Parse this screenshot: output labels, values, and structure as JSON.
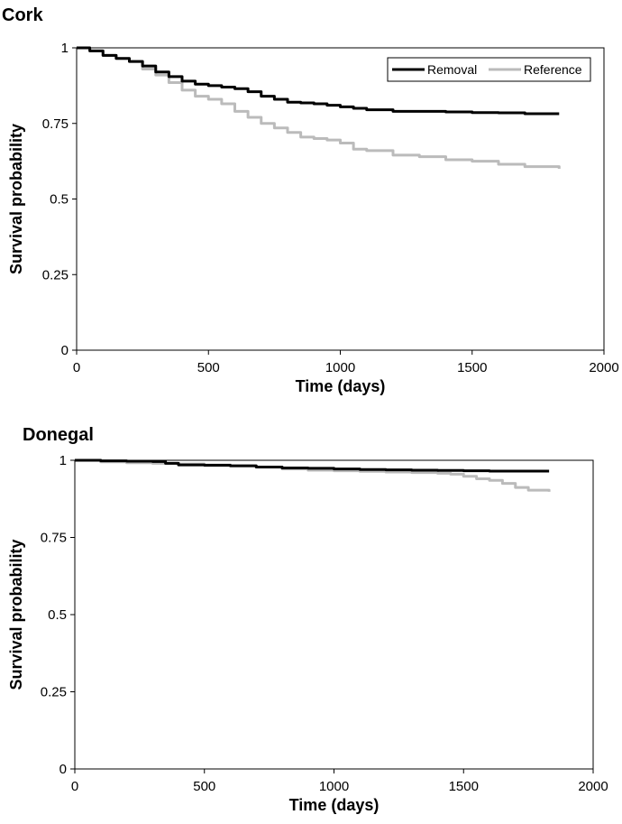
{
  "chart_data": [
    {
      "type": "line",
      "title": "Cork",
      "xlabel": "Time (days)",
      "ylabel": "Survival probability",
      "xlim": [
        0,
        2000
      ],
      "ylim": [
        0,
        1
      ],
      "xticks": [
        0,
        500,
        1000,
        1500,
        2000
      ],
      "yticks": [
        0,
        0.25,
        0.5,
        0.75,
        1
      ],
      "xtick_labels": [
        "0",
        "500",
        "1000",
        "1500",
        "2000"
      ],
      "ytick_labels": [
        "0",
        "0.25",
        "0.5",
        "0.75",
        "1"
      ],
      "legend": {
        "position": "top-right",
        "entries": [
          "Removal",
          "Reference"
        ]
      },
      "grid": false,
      "series": [
        {
          "name": "Removal",
          "color": "#000000",
          "x": [
            0,
            50,
            100,
            150,
            200,
            250,
            300,
            350,
            400,
            450,
            500,
            550,
            600,
            650,
            700,
            750,
            800,
            850,
            900,
            950,
            1000,
            1050,
            1100,
            1200,
            1300,
            1400,
            1500,
            1600,
            1700,
            1830
          ],
          "y": [
            1,
            0.99,
            0.975,
            0.965,
            0.955,
            0.94,
            0.92,
            0.905,
            0.89,
            0.88,
            0.875,
            0.87,
            0.865,
            0.855,
            0.84,
            0.83,
            0.82,
            0.818,
            0.815,
            0.81,
            0.805,
            0.8,
            0.795,
            0.79,
            0.79,
            0.788,
            0.786,
            0.785,
            0.782,
            0.782
          ]
        },
        {
          "name": "Reference",
          "color": "#bbbbbb",
          "x": [
            0,
            50,
            100,
            150,
            200,
            250,
            300,
            350,
            400,
            450,
            500,
            550,
            600,
            650,
            700,
            750,
            800,
            850,
            900,
            950,
            1000,
            1050,
            1100,
            1200,
            1300,
            1400,
            1500,
            1600,
            1700,
            1830
          ],
          "y": [
            1,
            0.99,
            0.975,
            0.965,
            0.955,
            0.93,
            0.91,
            0.885,
            0.86,
            0.84,
            0.83,
            0.815,
            0.79,
            0.77,
            0.75,
            0.735,
            0.72,
            0.705,
            0.7,
            0.695,
            0.685,
            0.665,
            0.66,
            0.645,
            0.64,
            0.63,
            0.625,
            0.615,
            0.607,
            0.6
          ]
        }
      ]
    },
    {
      "type": "line",
      "title": "Donegal",
      "xlabel": "Time (days)",
      "ylabel": "Survival probability",
      "xlim": [
        0,
        2000
      ],
      "ylim": [
        0,
        1
      ],
      "xticks": [
        0,
        500,
        1000,
        1500,
        2000
      ],
      "yticks": [
        0,
        0.25,
        0.5,
        0.75,
        1
      ],
      "xtick_labels": [
        "0",
        "500",
        "1000",
        "1500",
        "2000"
      ],
      "ytick_labels": [
        "0",
        "0.25",
        "0.5",
        "0.75",
        "1"
      ],
      "grid": false,
      "series": [
        {
          "name": "Removal",
          "color": "#000000",
          "x": [
            0,
            80,
            100,
            200,
            300,
            350,
            400,
            500,
            600,
            700,
            800,
            900,
            1000,
            1100,
            1200,
            1300,
            1400,
            1500,
            1600,
            1700,
            1830
          ],
          "y": [
            1,
            1,
            0.998,
            0.997,
            0.996,
            0.99,
            0.985,
            0.984,
            0.982,
            0.978,
            0.975,
            0.974,
            0.972,
            0.97,
            0.969,
            0.968,
            0.967,
            0.966,
            0.965,
            0.965,
            0.965
          ]
        },
        {
          "name": "Reference",
          "color": "#bbbbbb",
          "x": [
            0,
            100,
            200,
            300,
            400,
            500,
            600,
            700,
            800,
            900,
            1000,
            1100,
            1200,
            1300,
            1400,
            1450,
            1500,
            1550,
            1600,
            1650,
            1700,
            1750,
            1830
          ],
          "y": [
            1,
            0.995,
            0.992,
            0.99,
            0.988,
            0.985,
            0.982,
            0.978,
            0.972,
            0.968,
            0.966,
            0.964,
            0.962,
            0.96,
            0.958,
            0.955,
            0.948,
            0.94,
            0.935,
            0.925,
            0.912,
            0.903,
            0.898
          ]
        }
      ]
    }
  ]
}
